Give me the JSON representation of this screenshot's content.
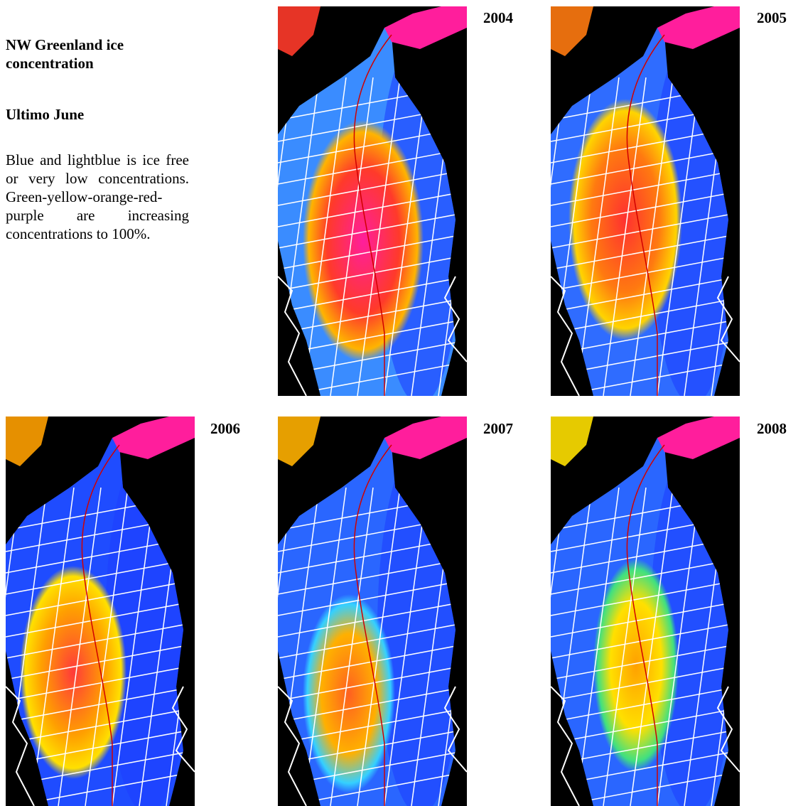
{
  "header": {
    "title": "NW Greenland ice concentration",
    "subtitle": "Ultimo June",
    "description": "Blue and lightblue is ice free or very low concentrations. Green-yellow-orange-red-purple are increasing concentrations to 100%."
  },
  "panels": [
    {
      "year": "2004"
    },
    {
      "year": "2005"
    },
    {
      "year": "2006"
    },
    {
      "year": "2007"
    },
    {
      "year": "2008"
    }
  ]
}
